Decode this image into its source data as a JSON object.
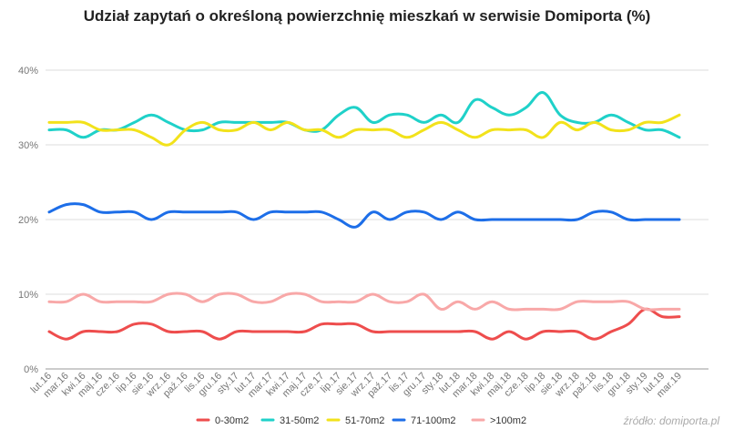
{
  "chart_data": {
    "type": "line",
    "title": "Udział zapytań o określoną powierzchnię mieszkań w serwisie Domiporta (%)",
    "source": "źródło: domiporta.pl",
    "ylim": [
      0,
      40
    ],
    "yticks": [
      0,
      10,
      20,
      30,
      40
    ],
    "ytick_labels": [
      "0%",
      "10%",
      "20%",
      "30%",
      "40%"
    ],
    "grid": true,
    "legend_position": "bottom",
    "categories": [
      "lut.16",
      "mar.16",
      "kwi.16",
      "maj.16",
      "cze.16",
      "lip.16",
      "sie.16",
      "wrz.16",
      "paź.16",
      "lis.16",
      "gru.16",
      "sty.17",
      "lut.17",
      "mar.17",
      "kwi.17",
      "maj.17",
      "cze.17",
      "lip.17",
      "sie.17",
      "wrz.17",
      "paź.17",
      "lis.17",
      "gru.17",
      "sty.18",
      "lut.18",
      "mar.18",
      "kwi.18",
      "maj.18",
      "cze.18",
      "lip.18",
      "sie.18",
      "wrz.18",
      "paź.18",
      "lis.18",
      "gru.18",
      "sty.19",
      "lut.19",
      "mar.19"
    ],
    "series": [
      {
        "name": "0-30m2",
        "color": "#ee4d4d",
        "values": [
          5,
          4,
          5,
          5,
          5,
          6,
          6,
          5,
          5,
          5,
          4,
          5,
          5,
          5,
          5,
          5,
          6,
          6,
          6,
          5,
          5,
          5,
          5,
          5,
          5,
          5,
          4,
          5,
          4,
          5,
          5,
          5,
          4,
          5,
          6,
          8,
          7,
          7
        ]
      },
      {
        "name": "31-50m2",
        "color": "#1fd1c9",
        "values": [
          32,
          32,
          31,
          32,
          32,
          33,
          34,
          33,
          32,
          32,
          33,
          33,
          33,
          33,
          33,
          32,
          32,
          34,
          35,
          33,
          34,
          34,
          33,
          34,
          33,
          36,
          35,
          34,
          35,
          37,
          34,
          33,
          33,
          34,
          33,
          32,
          32,
          31
        ]
      },
      {
        "name": "51-70m2",
        "color": "#f2e21b",
        "values": [
          33,
          33,
          33,
          32,
          32,
          32,
          31,
          30,
          32,
          33,
          32,
          32,
          33,
          32,
          33,
          32,
          32,
          31,
          32,
          32,
          32,
          31,
          32,
          33,
          32,
          31,
          32,
          32,
          32,
          31,
          33,
          32,
          33,
          32,
          32,
          33,
          33,
          34
        ]
      },
      {
        "name": "71-100m2",
        "color": "#1d6ee8",
        "values": [
          21,
          22,
          22,
          21,
          21,
          21,
          20,
          21,
          21,
          21,
          21,
          21,
          20,
          21,
          21,
          21,
          21,
          20,
          19,
          21,
          20,
          21,
          21,
          20,
          21,
          20,
          20,
          20,
          20,
          20,
          20,
          20,
          21,
          21,
          20,
          20,
          20,
          20
        ]
      },
      {
        "name": ">100m2",
        "color": "#f8a8a8",
        "values": [
          9,
          9,
          10,
          9,
          9,
          9,
          9,
          10,
          10,
          9,
          10,
          10,
          9,
          9,
          10,
          10,
          9,
          9,
          9,
          10,
          9,
          9,
          10,
          8,
          9,
          8,
          9,
          8,
          8,
          8,
          8,
          9,
          9,
          9,
          9,
          8,
          8,
          8
        ]
      }
    ]
  }
}
